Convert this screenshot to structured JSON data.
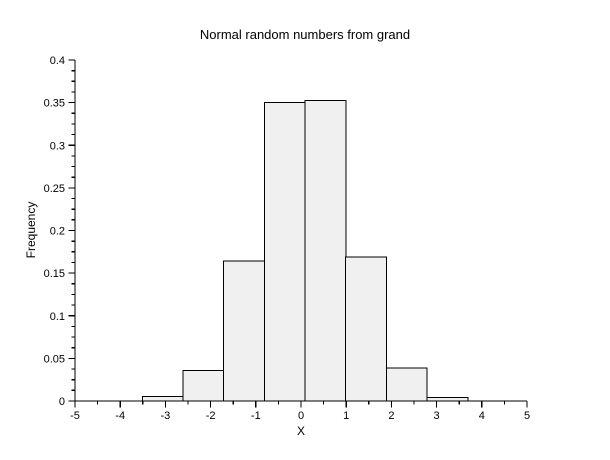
{
  "figure": {
    "background": "#ffffff"
  },
  "chart_data": {
    "type": "bar",
    "subtype": "histogram",
    "title": "Normal random numbers from grand",
    "xlabel": "X",
    "ylabel": "Frequency",
    "xlim": [
      -5,
      5
    ],
    "ylim": [
      0,
      0.4
    ],
    "grid": false,
    "legend": "none",
    "x_ticks": {
      "major": [
        -5,
        -4,
        -3,
        -2,
        -1,
        0,
        1,
        2,
        3,
        4,
        5
      ],
      "labels": [
        "-5",
        "-4",
        "-3",
        "-2",
        "-1",
        "0",
        "1",
        "2",
        "3",
        "4",
        "5"
      ],
      "minor": [
        -4.5,
        -3.5,
        -2.5,
        -1.5,
        -0.5,
        0.5,
        1.5,
        2.5,
        3.5,
        4.5
      ]
    },
    "y_ticks": {
      "major": [
        0,
        0.05,
        0.1,
        0.15,
        0.2,
        0.25,
        0.3,
        0.35,
        0.4
      ],
      "labels": [
        "0",
        "0.05",
        "0.1",
        "0.15",
        "0.2",
        "0.25",
        "0.3",
        "0.35",
        "0.4"
      ],
      "minor": [
        0.0125,
        0.025,
        0.0375,
        0.0625,
        0.075,
        0.0875,
        0.1125,
        0.125,
        0.1375,
        0.1625,
        0.175,
        0.1875,
        0.2125,
        0.225,
        0.2375,
        0.2625,
        0.275,
        0.2875,
        0.3125,
        0.325,
        0.3375,
        0.3625,
        0.375,
        0.3875
      ]
    },
    "bins": [
      {
        "x0": -3.51,
        "x1": -2.61,
        "frequency": 0.005
      },
      {
        "x0": -2.61,
        "x1": -1.71,
        "frequency": 0.036
      },
      {
        "x0": -1.71,
        "x1": -0.81,
        "frequency": 0.164
      },
      {
        "x0": -0.81,
        "x1": 0.09,
        "frequency": 0.35
      },
      {
        "x0": 0.09,
        "x1": 0.99,
        "frequency": 0.3525
      },
      {
        "x0": 0.99,
        "x1": 1.89,
        "frequency": 0.169
      },
      {
        "x0": 1.89,
        "x1": 2.79,
        "frequency": 0.039
      },
      {
        "x0": 2.79,
        "x1": 3.69,
        "frequency": 0.004
      }
    ],
    "colors": {
      "bar_fill": "#f0f0f0",
      "bar_stroke": "#000000",
      "axis": "#000000",
      "text": "#000000",
      "background": "#ffffff"
    }
  }
}
